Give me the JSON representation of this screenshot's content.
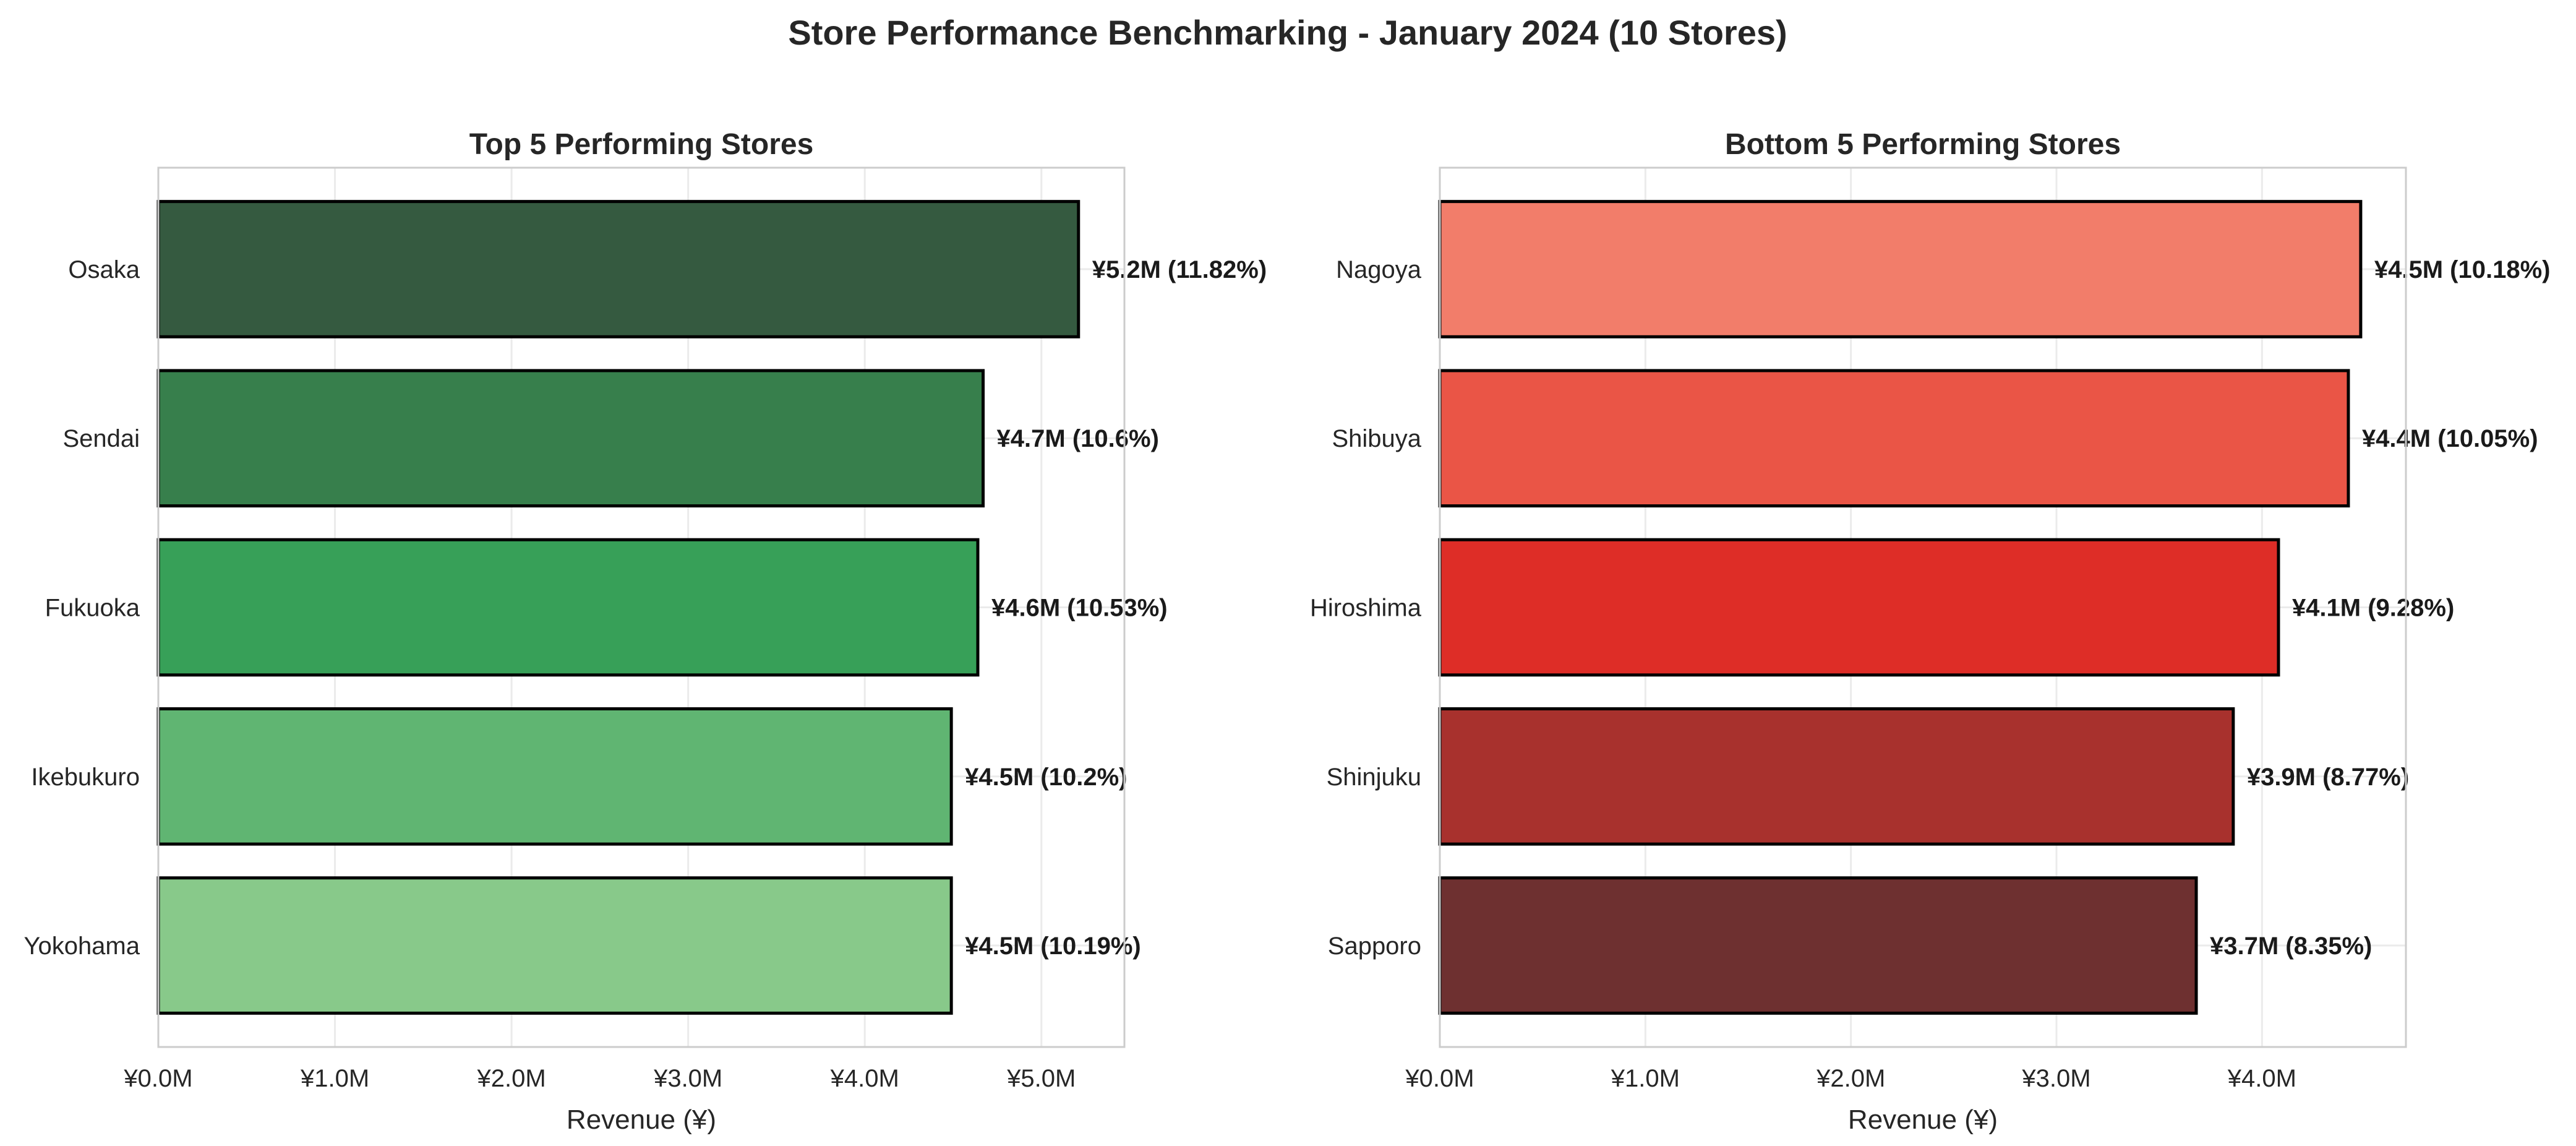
{
  "title": "Store Performance Benchmarking - January 2024 (10 Stores)",
  "chart_data": [
    {
      "type": "bar",
      "orientation": "horizontal",
      "title": "Top 5 Performing Stores",
      "xlabel": "Revenue (¥)",
      "ylabel": "",
      "xlim": [
        0,
        5.47
      ],
      "xticks": [
        0,
        1,
        2,
        3,
        4,
        5
      ],
      "xtick_labels": [
        "¥0.0M",
        "¥1.0M",
        "¥2.0M",
        "¥3.0M",
        "¥4.0M",
        "¥5.0M"
      ],
      "grid": true,
      "categories": [
        "Osaka",
        "Sendai",
        "Fukuoka",
        "Ikebukuro",
        "Yokohama"
      ],
      "values": [
        5.21,
        4.67,
        4.64,
        4.49,
        4.49
      ],
      "data_labels": [
        "¥5.2M (11.82%)",
        "¥4.7M (10.6%)",
        "¥4.6M (10.53%)",
        "¥4.5M (10.2%)",
        "¥4.5M (10.19%)"
      ],
      "colors": [
        "#355a40",
        "#377f4c",
        "#37a058",
        "#60b572",
        "#88c98a"
      ]
    },
    {
      "type": "bar",
      "orientation": "horizontal",
      "title": "Bottom 5 Performing Stores",
      "xlabel": "Revenue (¥)",
      "ylabel": "",
      "xlim": [
        0,
        4.7
      ],
      "xticks": [
        0,
        1,
        2,
        3,
        4
      ],
      "xtick_labels": [
        "¥0.0M",
        "¥1.0M",
        "¥2.0M",
        "¥3.0M",
        "¥4.0M"
      ],
      "grid": true,
      "categories": [
        "Nagoya",
        "Shibuya",
        "Hiroshima",
        "Shinjuku",
        "Sapporo"
      ],
      "values": [
        4.48,
        4.42,
        4.08,
        3.86,
        3.68
      ],
      "data_labels": [
        "¥4.5M (10.18%)",
        "¥4.4M (10.05%)",
        "¥4.1M (9.28%)",
        "¥3.9M (8.77%)",
        "¥3.7M (8.35%)"
      ],
      "colors": [
        "#f27d6a",
        "#ea5546",
        "#de2d27",
        "#a8312d",
        "#6e3030"
      ]
    }
  ]
}
